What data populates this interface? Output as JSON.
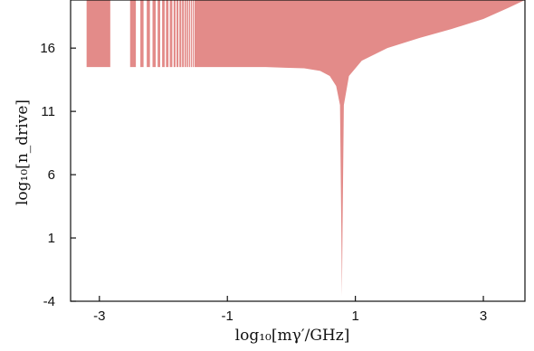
{
  "chart_data": {
    "type": "area",
    "title": "",
    "xlabel": "log₁₀[mγ′/GHz]",
    "ylabel": "log₁₀[n_drive]",
    "xlim": [
      -3.45,
      3.65
    ],
    "ylim": [
      -4,
      19.8
    ],
    "x_ticks": [
      -3,
      -1,
      1,
      3
    ],
    "x_tick_labels": [
      "-3",
      "-1",
      "1",
      "3"
    ],
    "y_ticks": [
      -4,
      1,
      6,
      11,
      16
    ],
    "y_tick_labels": [
      "-4",
      "1",
      "6",
      "11",
      "16"
    ],
    "grid": false,
    "series": [
      {
        "fill_color": "#e38b89",
        "upper_bound": {
          "x": [
            -3.2,
            3.65
          ],
          "y": [
            19.8,
            19.8
          ]
        },
        "lower_bound": {
          "x": [
            -3.2,
            -2.8,
            -2.4,
            -2.0,
            -1.6,
            -1.2,
            -0.8,
            -0.4,
            -0.1,
            0.2,
            0.45,
            0.6,
            0.7,
            0.76,
            0.78,
            0.79,
            0.8,
            0.82,
            0.9,
            1.1,
            1.5,
            2.0,
            2.5,
            3.0,
            3.4,
            3.65
          ],
          "y": [
            14.5,
            14.5,
            14.5,
            14.5,
            14.5,
            14.5,
            14.5,
            14.5,
            14.45,
            14.4,
            14.2,
            13.8,
            13.0,
            11.5,
            2.0,
            -3.6,
            2.0,
            11.5,
            13.8,
            15.0,
            16.0,
            16.8,
            17.5,
            18.3,
            19.2,
            19.8
          ]
        },
        "gaps_x": [
          [
            -2.83,
            -2.52
          ],
          [
            -2.43,
            -2.36
          ],
          [
            -2.31,
            -2.26
          ],
          [
            -2.21,
            -2.17
          ],
          [
            -2.12,
            -2.09
          ],
          [
            -2.05,
            -2.02
          ],
          [
            -1.98,
            -1.96
          ],
          [
            -1.92,
            -1.9
          ],
          [
            -1.86,
            -1.84
          ],
          [
            -1.81,
            -1.795
          ],
          [
            -1.765,
            -1.75
          ],
          [
            -1.72,
            -1.708
          ],
          [
            -1.68,
            -1.67
          ],
          [
            -1.645,
            -1.636
          ],
          [
            -1.612,
            -1.604
          ],
          [
            -1.58,
            -1.573
          ],
          [
            -1.552,
            -1.546
          ],
          [
            -1.525,
            -1.52
          ]
        ]
      }
    ]
  }
}
